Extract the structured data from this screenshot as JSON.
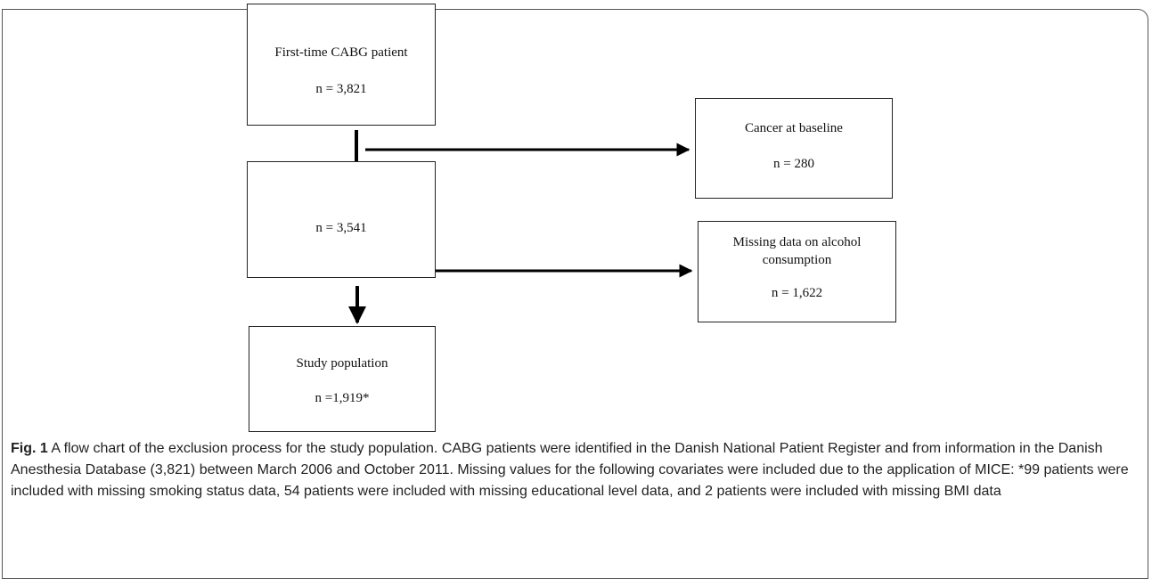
{
  "nodes": [
    {
      "label": "First-time CABG patient",
      "count": "n = 3,821"
    },
    {
      "label": "Cancer at baseline",
      "count": "n = 280"
    },
    {
      "count": "n = 3,541"
    },
    {
      "label": "Missing data on alcohol consumption",
      "count": "n = 1,622"
    },
    {
      "label": "Study population",
      "count": "n =1,919*"
    }
  ],
  "caption": {
    "label": "Fig. 1",
    "text": "A flow chart of the exclusion process for the study population. CABG patients were identified in the Danish National Patient Register and from information in the Danish Anesthesia Database (3,821) between March 2006 and October 2011. Missing values for the following covariates were included due to the application of MICE: *99 patients were included with missing smoking status data, 54 patients were included with missing educational level data, and 2 patients were included with missing BMI data"
  }
}
